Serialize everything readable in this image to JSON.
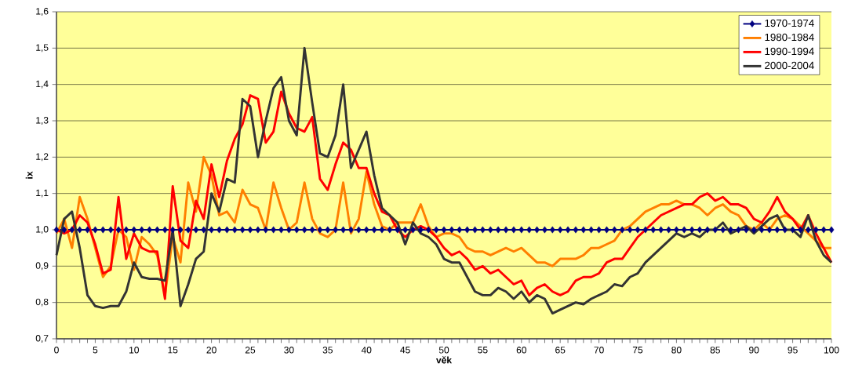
{
  "chart_data": {
    "type": "line",
    "xlabel": "věk",
    "ylabel": "ix",
    "x": [
      0,
      1,
      2,
      3,
      4,
      5,
      6,
      7,
      8,
      9,
      10,
      11,
      12,
      13,
      14,
      15,
      16,
      17,
      18,
      19,
      20,
      21,
      22,
      23,
      24,
      25,
      26,
      27,
      28,
      29,
      30,
      31,
      32,
      33,
      34,
      35,
      36,
      37,
      38,
      39,
      40,
      41,
      42,
      43,
      44,
      45,
      46,
      47,
      48,
      49,
      50,
      51,
      52,
      53,
      54,
      55,
      56,
      57,
      58,
      59,
      60,
      61,
      62,
      63,
      64,
      65,
      66,
      67,
      68,
      69,
      70,
      71,
      72,
      73,
      74,
      75,
      76,
      77,
      78,
      79,
      80,
      81,
      82,
      83,
      84,
      85,
      86,
      87,
      88,
      89,
      90,
      91,
      92,
      93,
      94,
      95,
      96,
      97,
      98,
      99,
      100
    ],
    "series": [
      {
        "name": "1970-1974",
        "color": "#000080",
        "marker": "diamond",
        "values": [
          1,
          1,
          1,
          1,
          1,
          1,
          1,
          1,
          1,
          1,
          1,
          1,
          1,
          1,
          1,
          1,
          1,
          1,
          1,
          1,
          1,
          1,
          1,
          1,
          1,
          1,
          1,
          1,
          1,
          1,
          1,
          1,
          1,
          1,
          1,
          1,
          1,
          1,
          1,
          1,
          1,
          1,
          1,
          1,
          1,
          1,
          1,
          1,
          1,
          1,
          1,
          1,
          1,
          1,
          1,
          1,
          1,
          1,
          1,
          1,
          1,
          1,
          1,
          1,
          1,
          1,
          1,
          1,
          1,
          1,
          1,
          1,
          1,
          1,
          1,
          1,
          1,
          1,
          1,
          1,
          1,
          1,
          1,
          1,
          1,
          1,
          1,
          1,
          1,
          1,
          1,
          1,
          1,
          1,
          1,
          1,
          1,
          1,
          1,
          1,
          1
        ]
      },
      {
        "name": "1980-1984",
        "color": "#ff7f00",
        "marker": "none",
        "values": [
          0.99,
          1.03,
          0.95,
          1.09,
          1.03,
          0.95,
          0.87,
          0.9,
          1.0,
          0.98,
          0.89,
          0.98,
          0.96,
          0.93,
          0.82,
          0.98,
          0.91,
          1.13,
          1.05,
          1.2,
          1.15,
          1.04,
          1.05,
          1.02,
          1.11,
          1.07,
          1.06,
          1.0,
          1.13,
          1.06,
          1.0,
          1.02,
          1.13,
          1.03,
          0.99,
          0.98,
          1.0,
          1.13,
          0.99,
          1.03,
          1.16,
          1.07,
          1.01,
          1.0,
          1.02,
          1.02,
          1.02,
          1.07,
          1.01,
          0.98,
          0.99,
          0.99,
          0.98,
          0.95,
          0.94,
          0.94,
          0.93,
          0.94,
          0.95,
          0.94,
          0.95,
          0.93,
          0.91,
          0.91,
          0.9,
          0.92,
          0.92,
          0.92,
          0.93,
          0.95,
          0.95,
          0.96,
          0.97,
          1.0,
          1.01,
          1.03,
          1.05,
          1.06,
          1.07,
          1.07,
          1.08,
          1.07,
          1.07,
          1.06,
          1.04,
          1.06,
          1.07,
          1.05,
          1.04,
          1.01,
          1.0,
          1.02,
          1.0,
          1.03,
          1.04,
          1.03,
          1.01,
          0.99,
          0.97,
          0.95,
          0.95
        ]
      },
      {
        "name": "1990-1994",
        "color": "#ff0000",
        "marker": "none",
        "values": [
          1.0,
          0.99,
          1.0,
          1.04,
          1.02,
          0.96,
          0.88,
          0.89,
          1.09,
          0.92,
          0.99,
          0.95,
          0.94,
          0.94,
          0.81,
          1.12,
          0.97,
          0.95,
          1.08,
          1.03,
          1.18,
          1.09,
          1.19,
          1.25,
          1.29,
          1.37,
          1.36,
          1.24,
          1.27,
          1.38,
          1.32,
          1.28,
          1.27,
          1.31,
          1.14,
          1.11,
          1.18,
          1.24,
          1.22,
          1.17,
          1.17,
          1.1,
          1.05,
          1.04,
          1.0,
          0.98,
          1.0,
          1.01,
          1.0,
          0.98,
          0.95,
          0.93,
          0.94,
          0.92,
          0.89,
          0.9,
          0.88,
          0.89,
          0.87,
          0.85,
          0.86,
          0.82,
          0.84,
          0.85,
          0.83,
          0.82,
          0.83,
          0.86,
          0.87,
          0.87,
          0.88,
          0.91,
          0.92,
          0.92,
          0.95,
          0.98,
          1.0,
          1.02,
          1.04,
          1.05,
          1.06,
          1.07,
          1.07,
          1.09,
          1.1,
          1.08,
          1.09,
          1.07,
          1.07,
          1.06,
          1.03,
          1.02,
          1.05,
          1.09,
          1.05,
          1.03,
          1.0,
          1.04,
          0.99,
          0.95,
          0.91
        ]
      },
      {
        "name": "2000-2004",
        "color": "#333333",
        "marker": "none",
        "values": [
          0.93,
          1.03,
          1.05,
          0.95,
          0.82,
          0.79,
          0.785,
          0.79,
          0.79,
          0.83,
          0.91,
          0.87,
          0.865,
          0.865,
          0.86,
          1.0,
          0.79,
          0.85,
          0.92,
          0.94,
          1.1,
          1.05,
          1.14,
          1.13,
          1.36,
          1.34,
          1.2,
          1.3,
          1.39,
          1.42,
          1.3,
          1.26,
          1.5,
          1.35,
          1.21,
          1.2,
          1.26,
          1.4,
          1.17,
          1.22,
          1.27,
          1.15,
          1.06,
          1.04,
          1.02,
          0.96,
          1.02,
          0.99,
          0.98,
          0.96,
          0.92,
          0.91,
          0.91,
          0.87,
          0.83,
          0.82,
          0.82,
          0.84,
          0.83,
          0.81,
          0.83,
          0.8,
          0.82,
          0.81,
          0.77,
          0.78,
          0.79,
          0.8,
          0.795,
          0.81,
          0.82,
          0.83,
          0.85,
          0.845,
          0.87,
          0.88,
          0.91,
          0.93,
          0.95,
          0.97,
          0.99,
          0.98,
          0.99,
          0.98,
          1.0,
          1.0,
          1.02,
          0.99,
          1.0,
          1.01,
          0.99,
          1.01,
          1.03,
          1.04,
          1.0,
          1.0,
          0.98,
          1.04,
          0.97,
          0.93,
          0.91
        ]
      }
    ],
    "xlim": [
      0,
      100
    ],
    "xticks": [
      0,
      {
        "value": 1,
        "label": null
      },
      {
        "value": 2,
        "label": null
      },
      {
        "value": 3,
        "label": null
      },
      {
        "value": 4,
        "label": null
      },
      5,
      {
        "value": 6,
        "label": null
      },
      {
        "value": 7,
        "label": null
      },
      {
        "value": 8,
        "label": null
      },
      {
        "value": 9,
        "label": null
      },
      10,
      {
        "value": 11,
        "label": null
      },
      {
        "value": 12,
        "label": null
      },
      {
        "value": 13,
        "label": null
      },
      {
        "value": 14,
        "label": null
      },
      15,
      {
        "value": 16,
        "label": null
      },
      {
        "value": 17,
        "label": null
      },
      {
        "value": 18,
        "label": null
      },
      {
        "value": 19,
        "label": null
      },
      20,
      {
        "value": 21,
        "label": null
      },
      {
        "value": 22,
        "label": null
      },
      {
        "value": 23,
        "label": null
      },
      {
        "value": 24,
        "label": null
      },
      25,
      {
        "value": 26,
        "label": null
      },
      {
        "value": 27,
        "label": null
      },
      {
        "value": 28,
        "label": null
      },
      {
        "value": 29,
        "label": null
      },
      30,
      {
        "value": 31,
        "label": null
      },
      {
        "value": 32,
        "label": null
      },
      {
        "value": 33,
        "label": null
      },
      {
        "value": 34,
        "label": null
      },
      35,
      {
        "value": 36,
        "label": null
      },
      {
        "value": 37,
        "label": null
      },
      {
        "value": 38,
        "label": null
      },
      {
        "value": 39,
        "label": null
      },
      40,
      {
        "value": 41,
        "label": null
      },
      {
        "value": 42,
        "label": null
      },
      {
        "value": 43,
        "label": null
      },
      {
        "value": 44,
        "label": null
      },
      45,
      {
        "value": 46,
        "label": null
      },
      {
        "value": 47,
        "label": null
      },
      {
        "value": 48,
        "label": null
      },
      {
        "value": 49,
        "label": null
      },
      50,
      {
        "value": 51,
        "label": null
      },
      {
        "value": 52,
        "label": null
      },
      {
        "value": 53,
        "label": null
      },
      {
        "value": 54,
        "label": null
      },
      55,
      {
        "value": 56,
        "label": null
      },
      {
        "value": 57,
        "label": null
      },
      {
        "value": 58,
        "label": null
      },
      {
        "value": 59,
        "label": null
      },
      60,
      {
        "value": 61,
        "label": null
      },
      {
        "value": 62,
        "label": null
      },
      {
        "value": 63,
        "label": null
      },
      {
        "value": 64,
        "label": null
      },
      65,
      {
        "value": 66,
        "label": null
      },
      {
        "value": 67,
        "label": null
      },
      {
        "value": 68,
        "label": null
      },
      {
        "value": 69,
        "label": null
      },
      70,
      {
        "value": 71,
        "label": null
      },
      {
        "value": 72,
        "label": null
      },
      {
        "value": 73,
        "label": null
      },
      {
        "value": 74,
        "label": null
      },
      75,
      {
        "value": 76,
        "label": null
      },
      {
        "value": 77,
        "label": null
      },
      {
        "value": 78,
        "label": null
      },
      {
        "value": 79,
        "label": null
      },
      80,
      {
        "value": 81,
        "label": null
      },
      {
        "value": 82,
        "label": null
      },
      {
        "value": 83,
        "label": null
      },
      {
        "value": 84,
        "label": null
      },
      85,
      {
        "value": 86,
        "label": null
      },
      {
        "value": 87,
        "label": null
      },
      {
        "value": 88,
        "label": null
      },
      {
        "value": 89,
        "label": null
      },
      90,
      {
        "value": 91,
        "label": null
      },
      {
        "value": 92,
        "label": null
      },
      {
        "value": 93,
        "label": null
      },
      {
        "value": 94,
        "label": null
      },
      95,
      {
        "value": 96,
        "label": null
      },
      {
        "value": 97,
        "label": null
      },
      {
        "value": 98,
        "label": null
      },
      {
        "value": 99,
        "label": null
      },
      100
    ],
    "ylim": [
      0.7,
      1.6
    ],
    "yticks": [
      {
        "value": 0.7,
        "label": "0,7"
      },
      {
        "value": 0.8,
        "label": "0,8"
      },
      {
        "value": 0.9,
        "label": "0,9"
      },
      {
        "value": 1.0,
        "label": "1,0"
      },
      {
        "value": 1.1,
        "label": "1,1"
      },
      {
        "value": 1.2,
        "label": "1,2"
      },
      {
        "value": 1.3,
        "label": "1,3"
      },
      {
        "value": 1.4,
        "label": "1,4"
      },
      {
        "value": 1.5,
        "label": "1,5"
      },
      {
        "value": 1.6,
        "label": "1,6"
      }
    ],
    "grid": "y",
    "legend": "top right"
  }
}
